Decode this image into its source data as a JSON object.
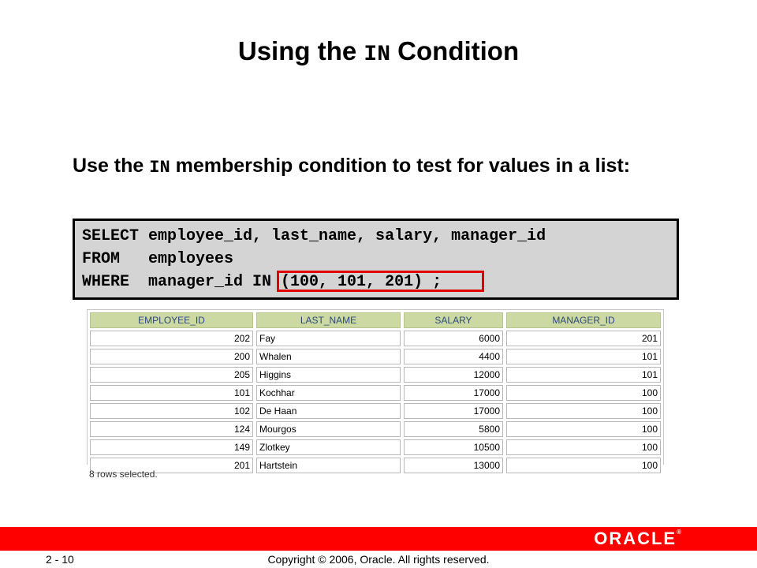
{
  "title": {
    "before": "Using the",
    "keyword": "IN",
    "after": "Condition"
  },
  "lead": {
    "before": "Use the",
    "keyword": "IN",
    "after": "membership condition to test for values in a list:"
  },
  "code": {
    "line1": "SELECT employee_id, last_name, salary, manager_id",
    "line2": "FROM   employees",
    "line3": "WHERE  manager_id IN (100, 101, 201) ;"
  },
  "table": {
    "headers": [
      "EMPLOYEE_ID",
      "LAST_NAME",
      "SALARY",
      "MANAGER_ID"
    ],
    "rows": [
      [
        "202",
        "Fay",
        "6000",
        "201"
      ],
      [
        "200",
        "Whalen",
        "4400",
        "101"
      ],
      [
        "205",
        "Higgins",
        "12000",
        "101"
      ],
      [
        "101",
        "Kochhar",
        "17000",
        "100"
      ],
      [
        "102",
        "De Haan",
        "17000",
        "100"
      ],
      [
        "124",
        "Mourgos",
        "5800",
        "100"
      ],
      [
        "149",
        "Zlotkey",
        "10500",
        "100"
      ],
      [
        "201",
        "Hartstein",
        "13000",
        "100"
      ]
    ]
  },
  "rows_note": "8 rows selected.",
  "footer": {
    "page": "2 - 10",
    "copyright": "Copyright © 2006, Oracle. All rights reserved.",
    "logo": "ORACLE",
    "logo_mark": "®"
  },
  "colors": {
    "accent_bar": "#ff0000",
    "highlight_box": "#e00000",
    "header_bg": "#cdd9a3",
    "code_bg": "#d4d4d4"
  }
}
